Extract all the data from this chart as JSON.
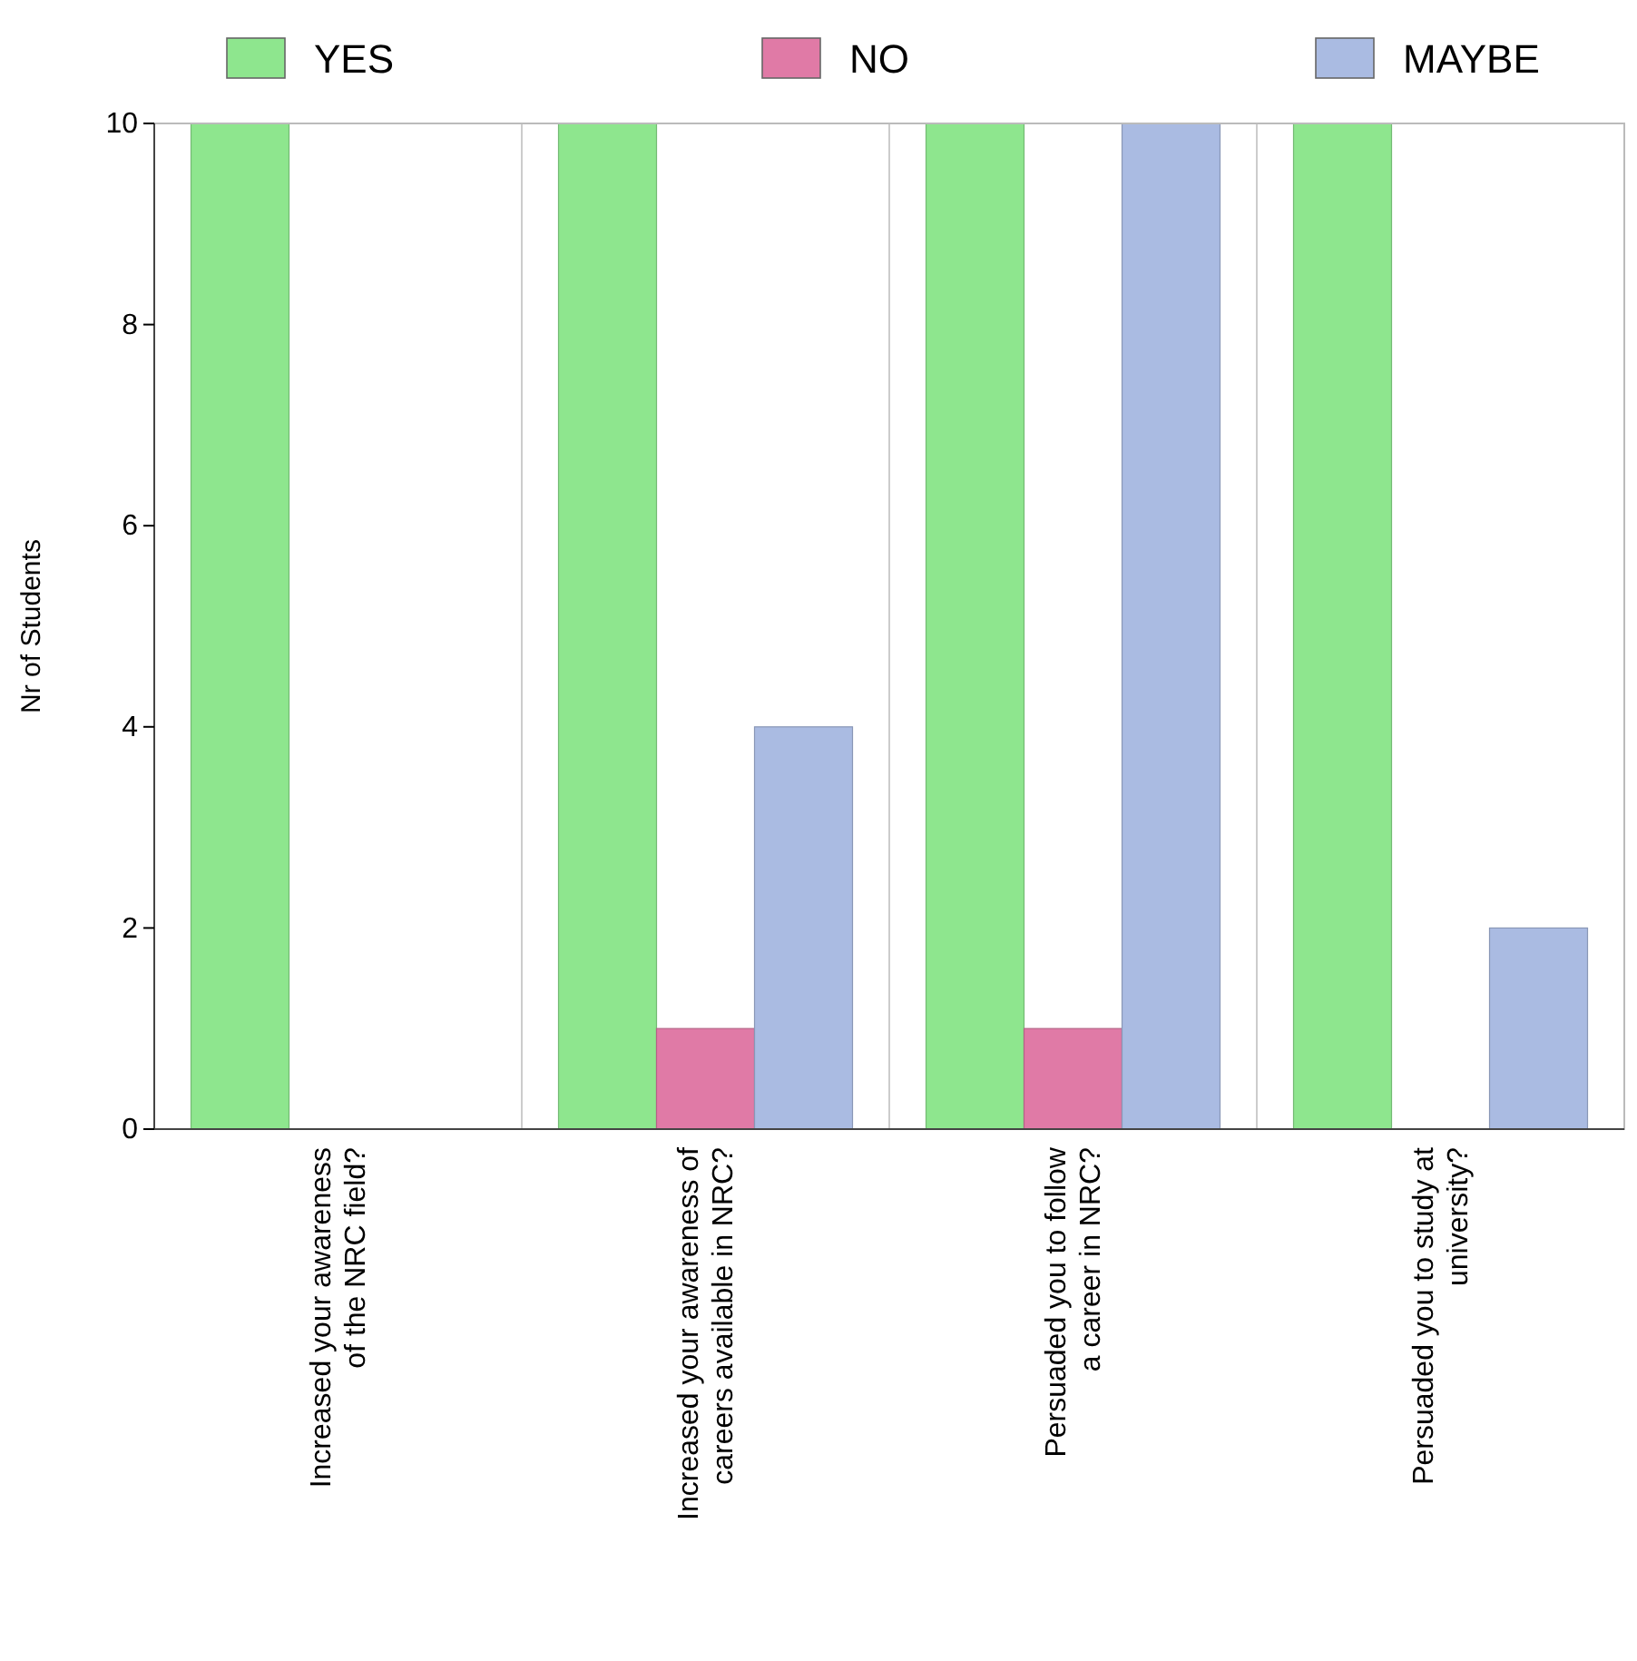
{
  "chart_data": {
    "type": "bar",
    "ylabel": "Nr of Students",
    "categories": [
      "Increased your awareness\nof the NRC field?",
      "Increased your awareness of\ncareers available in NRC?",
      "Persuaded you to follow\na career in NRC?",
      "Persuaded you to study at\nuniversity?"
    ],
    "series": [
      {
        "name": "YES",
        "color": "#8ee68e",
        "values": [
          10,
          10,
          10,
          10
        ]
      },
      {
        "name": "NO",
        "color": "#e07aa6",
        "values": [
          0,
          1,
          1,
          0
        ]
      },
      {
        "name": "MAYBE",
        "color": "#aabbe2",
        "values": [
          0,
          4,
          10,
          2
        ]
      }
    ],
    "ylim": [
      0,
      10
    ],
    "yticks": [
      0,
      2,
      4,
      6,
      8,
      10
    ],
    "legend": "top"
  }
}
